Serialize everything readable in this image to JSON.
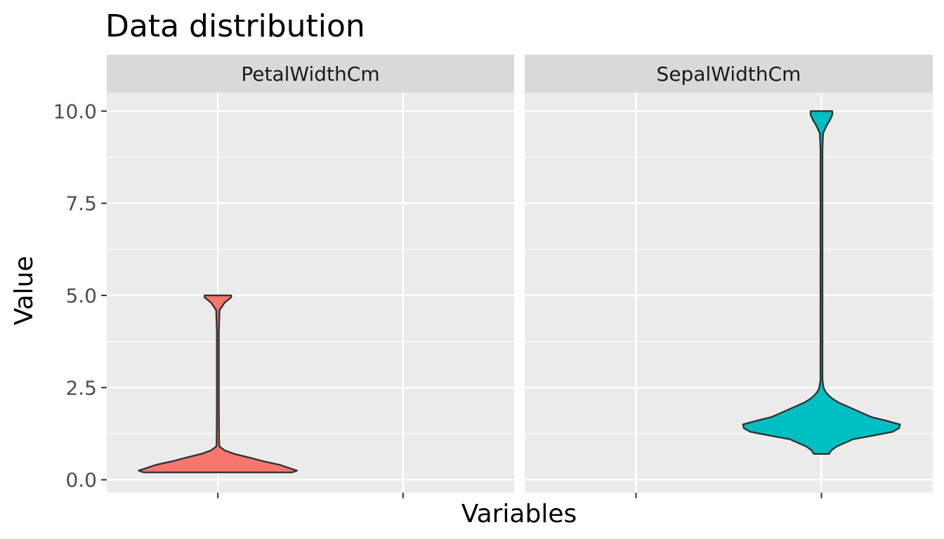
{
  "chart_data": {
    "type": "violin",
    "title": "Data distribution",
    "xlabel": "Variables",
    "ylabel": "Value",
    "ylim": [
      -0.35,
      10.5
    ],
    "yticks": [
      "0.0",
      "2.5",
      "5.0",
      "7.5",
      "10.0"
    ],
    "ytick_values": [
      0,
      2.5,
      5,
      7.5,
      10
    ],
    "grid": true,
    "facets": [
      {
        "label": "PetalWidthCm",
        "fill": "#F8766D",
        "min": 0.2,
        "max": 5.0,
        "density": [
          [
            0.2,
            0.89
          ],
          [
            0.25,
            0.95
          ],
          [
            0.3,
            0.88
          ],
          [
            0.4,
            0.75
          ],
          [
            0.5,
            0.55
          ],
          [
            0.6,
            0.38
          ],
          [
            0.7,
            0.2
          ],
          [
            0.8,
            0.08
          ],
          [
            0.9,
            0.02
          ],
          [
            1.0,
            0.015
          ],
          [
            2.0,
            0.012
          ],
          [
            3.0,
            0.012
          ],
          [
            4.0,
            0.012
          ],
          [
            4.6,
            0.02
          ],
          [
            4.8,
            0.08
          ],
          [
            4.95,
            0.16
          ],
          [
            5.0,
            0.16
          ]
        ]
      },
      {
        "label": "SepalWidthCm",
        "fill": "#00BFC4",
        "min": 0.7,
        "max": 10.0,
        "density": [
          [
            0.7,
            0.09
          ],
          [
            0.8,
            0.12
          ],
          [
            0.9,
            0.18
          ],
          [
            1.0,
            0.28
          ],
          [
            1.1,
            0.38
          ],
          [
            1.2,
            0.62
          ],
          [
            1.3,
            0.85
          ],
          [
            1.4,
            0.93
          ],
          [
            1.5,
            0.94
          ],
          [
            1.6,
            0.78
          ],
          [
            1.7,
            0.6
          ],
          [
            1.8,
            0.5
          ],
          [
            1.9,
            0.4
          ],
          [
            2.0,
            0.3
          ],
          [
            2.1,
            0.2
          ],
          [
            2.2,
            0.13
          ],
          [
            2.3,
            0.08
          ],
          [
            2.4,
            0.045
          ],
          [
            2.5,
            0.025
          ],
          [
            2.7,
            0.012
          ],
          [
            5.0,
            0.012
          ],
          [
            9.0,
            0.012
          ],
          [
            9.4,
            0.02
          ],
          [
            9.6,
            0.06
          ],
          [
            9.75,
            0.1
          ],
          [
            9.9,
            0.13
          ],
          [
            10.0,
            0.13
          ]
        ]
      }
    ]
  }
}
